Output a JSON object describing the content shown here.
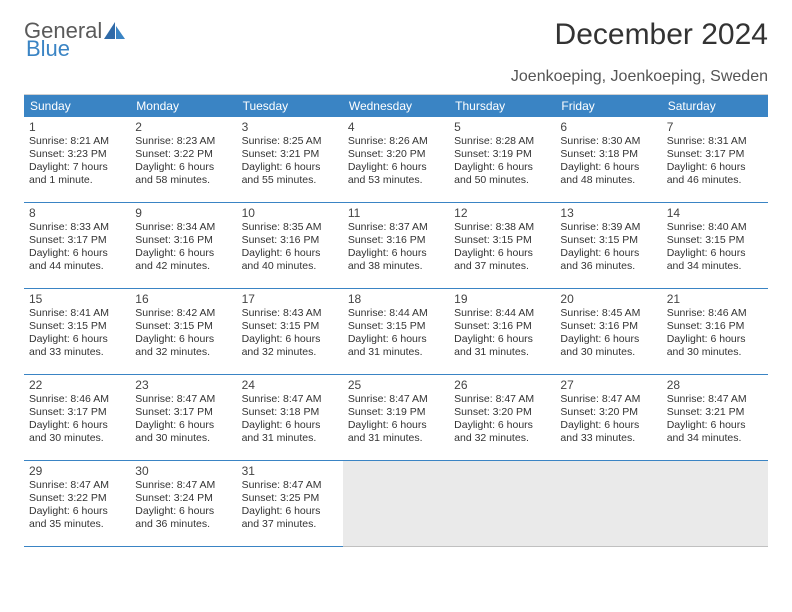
{
  "logo": {
    "text1": "General",
    "text2": "Blue"
  },
  "title": "December 2024",
  "location": "Joenkoeping, Joenkoeping, Sweden",
  "colors": {
    "header_bg": "#3a84c4",
    "header_text": "#ffffff",
    "row_border": "#3a84c4",
    "empty_bg": "#eaeaea",
    "page_bg": "#ffffff"
  },
  "dow": [
    "Sunday",
    "Monday",
    "Tuesday",
    "Wednesday",
    "Thursday",
    "Friday",
    "Saturday"
  ],
  "days": [
    {
      "n": "1",
      "sr": "Sunrise: 8:21 AM",
      "ss": "Sunset: 3:23 PM",
      "d1": "Daylight: 7 hours",
      "d2": "and 1 minute."
    },
    {
      "n": "2",
      "sr": "Sunrise: 8:23 AM",
      "ss": "Sunset: 3:22 PM",
      "d1": "Daylight: 6 hours",
      "d2": "and 58 minutes."
    },
    {
      "n": "3",
      "sr": "Sunrise: 8:25 AM",
      "ss": "Sunset: 3:21 PM",
      "d1": "Daylight: 6 hours",
      "d2": "and 55 minutes."
    },
    {
      "n": "4",
      "sr": "Sunrise: 8:26 AM",
      "ss": "Sunset: 3:20 PM",
      "d1": "Daylight: 6 hours",
      "d2": "and 53 minutes."
    },
    {
      "n": "5",
      "sr": "Sunrise: 8:28 AM",
      "ss": "Sunset: 3:19 PM",
      "d1": "Daylight: 6 hours",
      "d2": "and 50 minutes."
    },
    {
      "n": "6",
      "sr": "Sunrise: 8:30 AM",
      "ss": "Sunset: 3:18 PM",
      "d1": "Daylight: 6 hours",
      "d2": "and 48 minutes."
    },
    {
      "n": "7",
      "sr": "Sunrise: 8:31 AM",
      "ss": "Sunset: 3:17 PM",
      "d1": "Daylight: 6 hours",
      "d2": "and 46 minutes."
    },
    {
      "n": "8",
      "sr": "Sunrise: 8:33 AM",
      "ss": "Sunset: 3:17 PM",
      "d1": "Daylight: 6 hours",
      "d2": "and 44 minutes."
    },
    {
      "n": "9",
      "sr": "Sunrise: 8:34 AM",
      "ss": "Sunset: 3:16 PM",
      "d1": "Daylight: 6 hours",
      "d2": "and 42 minutes."
    },
    {
      "n": "10",
      "sr": "Sunrise: 8:35 AM",
      "ss": "Sunset: 3:16 PM",
      "d1": "Daylight: 6 hours",
      "d2": "and 40 minutes."
    },
    {
      "n": "11",
      "sr": "Sunrise: 8:37 AM",
      "ss": "Sunset: 3:16 PM",
      "d1": "Daylight: 6 hours",
      "d2": "and 38 minutes."
    },
    {
      "n": "12",
      "sr": "Sunrise: 8:38 AM",
      "ss": "Sunset: 3:15 PM",
      "d1": "Daylight: 6 hours",
      "d2": "and 37 minutes."
    },
    {
      "n": "13",
      "sr": "Sunrise: 8:39 AM",
      "ss": "Sunset: 3:15 PM",
      "d1": "Daylight: 6 hours",
      "d2": "and 36 minutes."
    },
    {
      "n": "14",
      "sr": "Sunrise: 8:40 AM",
      "ss": "Sunset: 3:15 PM",
      "d1": "Daylight: 6 hours",
      "d2": "and 34 minutes."
    },
    {
      "n": "15",
      "sr": "Sunrise: 8:41 AM",
      "ss": "Sunset: 3:15 PM",
      "d1": "Daylight: 6 hours",
      "d2": "and 33 minutes."
    },
    {
      "n": "16",
      "sr": "Sunrise: 8:42 AM",
      "ss": "Sunset: 3:15 PM",
      "d1": "Daylight: 6 hours",
      "d2": "and 32 minutes."
    },
    {
      "n": "17",
      "sr": "Sunrise: 8:43 AM",
      "ss": "Sunset: 3:15 PM",
      "d1": "Daylight: 6 hours",
      "d2": "and 32 minutes."
    },
    {
      "n": "18",
      "sr": "Sunrise: 8:44 AM",
      "ss": "Sunset: 3:15 PM",
      "d1": "Daylight: 6 hours",
      "d2": "and 31 minutes."
    },
    {
      "n": "19",
      "sr": "Sunrise: 8:44 AM",
      "ss": "Sunset: 3:16 PM",
      "d1": "Daylight: 6 hours",
      "d2": "and 31 minutes."
    },
    {
      "n": "20",
      "sr": "Sunrise: 8:45 AM",
      "ss": "Sunset: 3:16 PM",
      "d1": "Daylight: 6 hours",
      "d2": "and 30 minutes."
    },
    {
      "n": "21",
      "sr": "Sunrise: 8:46 AM",
      "ss": "Sunset: 3:16 PM",
      "d1": "Daylight: 6 hours",
      "d2": "and 30 minutes."
    },
    {
      "n": "22",
      "sr": "Sunrise: 8:46 AM",
      "ss": "Sunset: 3:17 PM",
      "d1": "Daylight: 6 hours",
      "d2": "and 30 minutes."
    },
    {
      "n": "23",
      "sr": "Sunrise: 8:47 AM",
      "ss": "Sunset: 3:17 PM",
      "d1": "Daylight: 6 hours",
      "d2": "and 30 minutes."
    },
    {
      "n": "24",
      "sr": "Sunrise: 8:47 AM",
      "ss": "Sunset: 3:18 PM",
      "d1": "Daylight: 6 hours",
      "d2": "and 31 minutes."
    },
    {
      "n": "25",
      "sr": "Sunrise: 8:47 AM",
      "ss": "Sunset: 3:19 PM",
      "d1": "Daylight: 6 hours",
      "d2": "and 31 minutes."
    },
    {
      "n": "26",
      "sr": "Sunrise: 8:47 AM",
      "ss": "Sunset: 3:20 PM",
      "d1": "Daylight: 6 hours",
      "d2": "and 32 minutes."
    },
    {
      "n": "27",
      "sr": "Sunrise: 8:47 AM",
      "ss": "Sunset: 3:20 PM",
      "d1": "Daylight: 6 hours",
      "d2": "and 33 minutes."
    },
    {
      "n": "28",
      "sr": "Sunrise: 8:47 AM",
      "ss": "Sunset: 3:21 PM",
      "d1": "Daylight: 6 hours",
      "d2": "and 34 minutes."
    },
    {
      "n": "29",
      "sr": "Sunrise: 8:47 AM",
      "ss": "Sunset: 3:22 PM",
      "d1": "Daylight: 6 hours",
      "d2": "and 35 minutes."
    },
    {
      "n": "30",
      "sr": "Sunrise: 8:47 AM",
      "ss": "Sunset: 3:24 PM",
      "d1": "Daylight: 6 hours",
      "d2": "and 36 minutes."
    },
    {
      "n": "31",
      "sr": "Sunrise: 8:47 AM",
      "ss": "Sunset: 3:25 PM",
      "d1": "Daylight: 6 hours",
      "d2": "and 37 minutes."
    }
  ],
  "trailing_empty": 4
}
